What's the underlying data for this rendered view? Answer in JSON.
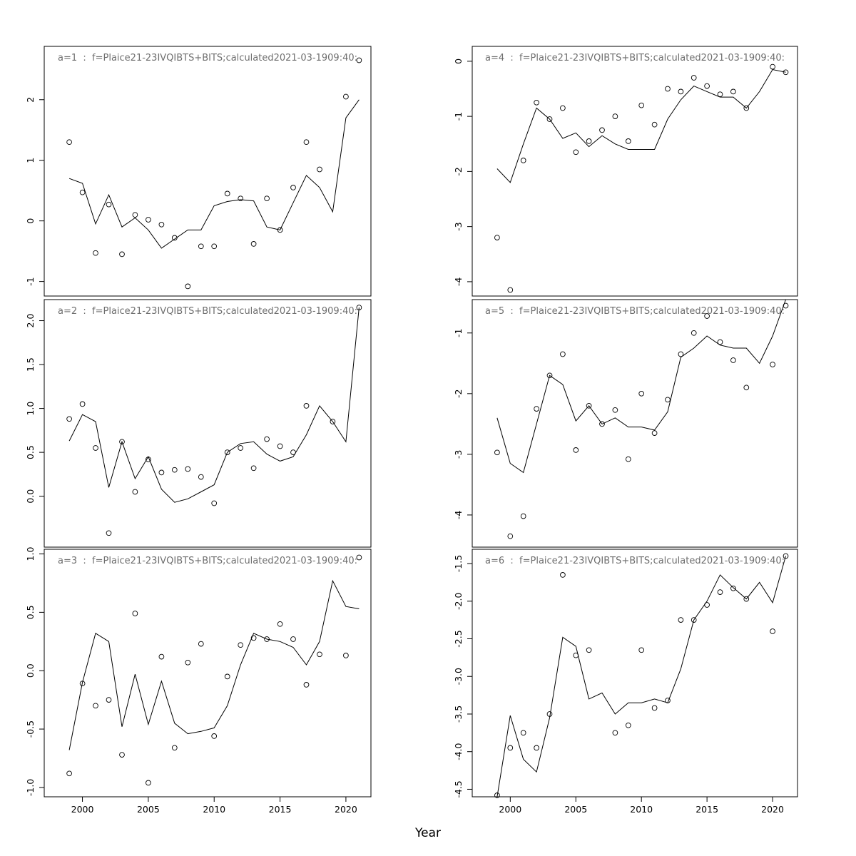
{
  "figure": {
    "xlabel": "Year",
    "background": "#ffffff",
    "axis_color": "#000000",
    "title_color": "#6e6e6e",
    "years": [
      1999,
      2000,
      2001,
      2002,
      2003,
      2004,
      2005,
      2006,
      2007,
      2008,
      2009,
      2010,
      2011,
      2012,
      2013,
      2014,
      2015,
      2016,
      2017,
      2018,
      2019,
      2020,
      2021
    ],
    "xlim": [
      1997.1,
      2021.9
    ],
    "x_tick_values": [
      2000,
      2005,
      2010,
      2015,
      2020
    ],
    "x_tick_labels": [
      "2000",
      "2005",
      "2010",
      "2015",
      "2020"
    ]
  },
  "chart_data": [
    {
      "id": "a1",
      "label": "a=1",
      "type": "line+scatter",
      "title": "a=1  :  f=Plaice21-23IVQIBTS+BITS;calculated2021-03-1909:40:",
      "ylim": [
        -1.24,
        2.88
      ],
      "y_tick_values": [
        -1,
        0,
        1,
        2
      ],
      "y_tick_labels": [
        "-1",
        "0",
        "1",
        "2"
      ],
      "points": [
        1.3,
        0.47,
        -0.53,
        0.27,
        -0.55,
        0.1,
        0.02,
        -0.06,
        -0.28,
        -1.08,
        -0.42,
        -0.42,
        0.45,
        0.37,
        -0.38,
        0.37,
        -0.15,
        0.55,
        1.3,
        0.85,
        null,
        2.05,
        2.65
      ],
      "line": [
        0.7,
        0.62,
        -0.05,
        0.43,
        -0.1,
        0.05,
        -0.15,
        -0.45,
        -0.3,
        -0.15,
        -0.15,
        0.25,
        0.32,
        0.35,
        0.33,
        -0.1,
        -0.15,
        0.3,
        0.75,
        0.55,
        0.15,
        1.7,
        2.0
      ]
    },
    {
      "id": "a2",
      "label": "a=2",
      "type": "line+scatter",
      "title": "a=2  :  f=Plaice21-23IVQIBTS+BITS;calculated2021-03-1909:40:",
      "ylim": [
        -0.58,
        2.24
      ],
      "y_tick_values": [
        0,
        0.5,
        1,
        1.5,
        2
      ],
      "y_tick_labels": [
        "0.0",
        "0.5",
        "1.0",
        "1.5",
        "2.0"
      ],
      "points": [
        0.88,
        1.05,
        0.55,
        -0.42,
        0.62,
        0.05,
        0.42,
        0.27,
        0.3,
        0.31,
        0.22,
        -0.08,
        0.5,
        0.55,
        0.32,
        0.65,
        0.57,
        0.5,
        1.03,
        null,
        0.85,
        null,
        2.15
      ],
      "line": [
        0.63,
        0.93,
        0.85,
        0.1,
        0.62,
        0.2,
        0.45,
        0.08,
        -0.07,
        -0.03,
        0.05,
        0.13,
        0.5,
        0.6,
        0.62,
        0.48,
        0.4,
        0.45,
        0.7,
        1.03,
        0.85,
        0.62,
        2.15
      ]
    },
    {
      "id": "a3",
      "label": "a=3",
      "type": "line+scatter",
      "title": "a=3  :  f=Plaice21-23IVQIBTS+BITS;calculated2021-03-1909:40:",
      "ylim": [
        -1.08,
        1.04
      ],
      "y_tick_values": [
        -1,
        -0.5,
        0,
        0.5,
        1
      ],
      "y_tick_labels": [
        "-1.0",
        "-0.5",
        "0.0",
        "0.5",
        "1.0"
      ],
      "points": [
        -0.88,
        -0.11,
        -0.3,
        -0.25,
        -0.72,
        0.49,
        -0.96,
        0.12,
        -0.66,
        0.07,
        0.23,
        -0.56,
        -0.05,
        0.22,
        0.28,
        0.27,
        0.4,
        0.27,
        -0.12,
        0.14,
        null,
        0.13,
        0.97
      ],
      "line": [
        -0.68,
        -0.1,
        0.32,
        0.25,
        -0.48,
        -0.03,
        -0.46,
        -0.09,
        -0.45,
        -0.54,
        -0.52,
        -0.49,
        -0.3,
        0.05,
        0.32,
        0.27,
        0.25,
        0.2,
        0.05,
        0.25,
        0.77,
        0.55,
        0.53
      ]
    },
    {
      "id": "a4",
      "label": "a=4",
      "type": "line+scatter",
      "title": "a=4  :  f=Plaice21-23IVQIBTS+BITS;calculated2021-03-1909:40:",
      "ylim": [
        -4.26,
        0.27
      ],
      "y_tick_values": [
        -4,
        -3,
        -2,
        -1,
        0
      ],
      "y_tick_labels": [
        "-4",
        "-3",
        "-2",
        "-1",
        "0"
      ],
      "points": [
        -3.2,
        -4.15,
        -1.8,
        -0.75,
        -1.05,
        -0.85,
        -1.65,
        -1.45,
        -1.25,
        -1.0,
        -1.45,
        -0.8,
        -1.15,
        -0.5,
        -0.55,
        -0.3,
        -0.45,
        -0.6,
        -0.55,
        -0.85,
        null,
        -0.1,
        -0.2
      ],
      "line": [
        -1.95,
        -2.2,
        -1.5,
        -0.85,
        -1.05,
        -1.4,
        -1.3,
        -1.55,
        -1.35,
        -1.5,
        -1.6,
        -1.6,
        -1.6,
        -1.05,
        -0.7,
        -0.45,
        -0.55,
        -0.65,
        -0.65,
        -0.85,
        -0.55,
        -0.15,
        -0.2
      ]
    },
    {
      "id": "a5",
      "label": "a=5",
      "type": "line+scatter",
      "title": "a=5  :  f=Plaice21-23IVQIBTS+BITS;calculated2021-03-1909:40:",
      "ylim": [
        -4.53,
        -0.45
      ],
      "y_tick_values": [
        -4,
        -3,
        -2,
        -1
      ],
      "y_tick_labels": [
        "-4",
        "-3",
        "-2",
        "-1"
      ],
      "points": [
        -2.97,
        -4.35,
        -4.02,
        -2.25,
        -1.7,
        -1.35,
        -2.93,
        -2.2,
        -2.5,
        -2.27,
        -3.08,
        -2.0,
        -2.65,
        -2.1,
        -1.35,
        -1.0,
        -0.72,
        -1.15,
        -1.45,
        -1.9,
        null,
        -1.52,
        -0.55
      ],
      "line": [
        -2.4,
        -3.15,
        -3.3,
        -2.5,
        -1.7,
        -1.85,
        -2.45,
        -2.2,
        -2.5,
        -2.4,
        -2.55,
        -2.55,
        -2.6,
        -2.3,
        -1.4,
        -1.25,
        -1.05,
        -1.2,
        -1.25,
        -1.25,
        -1.5,
        -1.05,
        -0.45
      ]
    },
    {
      "id": "a6",
      "label": "a=6",
      "type": "line+scatter",
      "title": "a=6  :  f=Plaice21-23IVQIBTS+BITS;calculated2021-03-1909:40:",
      "ylim": [
        -4.6,
        -1.31
      ],
      "y_tick_values": [
        -4.5,
        -4,
        -3.5,
        -3,
        -2.5,
        -2,
        -1.5
      ],
      "y_tick_labels": [
        "-4.5",
        "-4.0",
        "-3.5",
        "-3.0",
        "-2.5",
        "-2.0",
        "-1.5"
      ],
      "points": [
        -4.58,
        -3.95,
        -3.75,
        -3.95,
        -3.5,
        -1.65,
        -2.72,
        -2.65,
        null,
        -3.75,
        -3.65,
        -2.65,
        -3.42,
        -3.32,
        -2.25,
        -2.25,
        -2.05,
        -1.88,
        -1.83,
        -1.97,
        null,
        -2.4,
        -1.4
      ],
      "line": [
        -4.6,
        -3.52,
        -4.1,
        -4.27,
        -3.55,
        -2.48,
        -2.6,
        -3.3,
        -3.22,
        -3.5,
        -3.35,
        -3.35,
        -3.3,
        -3.35,
        -2.9,
        -2.25,
        -2.0,
        -1.65,
        -1.82,
        -1.97,
        -1.75,
        -2.02,
        -1.4
      ]
    }
  ]
}
